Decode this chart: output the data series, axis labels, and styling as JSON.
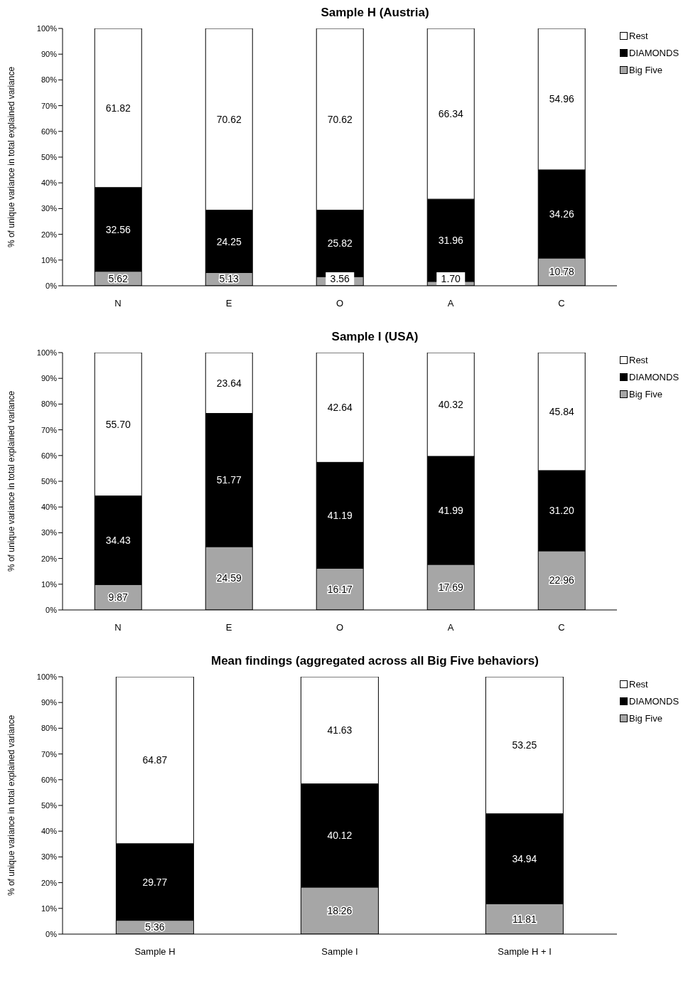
{
  "chart_data": [
    {
      "type": "bar",
      "title": "Sample H (Austria)",
      "ylabel": "% of unique variance in total explained variance",
      "categories": [
        "N",
        "E",
        "O",
        "A",
        "C"
      ],
      "stacked": true,
      "legend": "top right",
      "ylim": [
        0,
        100
      ],
      "yticks": [
        {
          "value": 0,
          "label": "0%"
        },
        {
          "value": 10,
          "label": "10%"
        },
        {
          "value": 20,
          "label": "20%"
        },
        {
          "value": 30,
          "label": "30%"
        },
        {
          "value": 40,
          "label": "40%"
        },
        {
          "value": 50,
          "label": "50%"
        },
        {
          "value": 60,
          "label": "60%"
        },
        {
          "value": 70,
          "label": "70%"
        },
        {
          "value": 80,
          "label": "80%"
        },
        {
          "value": 90,
          "label": "90%"
        },
        {
          "value": 100,
          "label": "100%"
        }
      ],
      "series": [
        {
          "name": "Big Five",
          "color": "#a6a6a6",
          "values": [
            5.62,
            5.13,
            3.56,
            1.7,
            10.78
          ],
          "value_labels": [
            "5.62",
            "5.13",
            "3.56",
            "1.70",
            "10.78"
          ]
        },
        {
          "name": "DIAMONDS",
          "color": "#000000",
          "values": [
            32.56,
            24.25,
            25.82,
            31.96,
            34.26
          ],
          "value_labels": [
            "32.56",
            "24.25",
            "25.82",
            "31.96",
            "34.26"
          ]
        },
        {
          "name": "Rest",
          "color": "#ffffff",
          "values": [
            61.82,
            70.62,
            70.62,
            66.34,
            54.96
          ],
          "value_labels": [
            "61.82",
            "70.62",
            "70.62",
            "66.34",
            "54.96"
          ]
        }
      ]
    },
    {
      "type": "bar",
      "title": "Sample I (USA)",
      "ylabel": "% of unique variance in total explained variance",
      "categories": [
        "N",
        "E",
        "O",
        "A",
        "C"
      ],
      "stacked": true,
      "legend": "top right",
      "ylim": [
        0,
        100
      ],
      "yticks": [
        {
          "value": 0,
          "label": "0%"
        },
        {
          "value": 10,
          "label": "10%"
        },
        {
          "value": 20,
          "label": "20%"
        },
        {
          "value": 30,
          "label": "30%"
        },
        {
          "value": 40,
          "label": "40%"
        },
        {
          "value": 50,
          "label": "50%"
        },
        {
          "value": 60,
          "label": "60%"
        },
        {
          "value": 70,
          "label": "70%"
        },
        {
          "value": 80,
          "label": "80%"
        },
        {
          "value": 90,
          "label": "90%"
        },
        {
          "value": 100,
          "label": "100%"
        }
      ],
      "series": [
        {
          "name": "Big Five",
          "color": "#a6a6a6",
          "values": [
            9.87,
            24.59,
            16.17,
            17.69,
            22.96
          ],
          "value_labels": [
            "9.87",
            "24.59",
            "16.17",
            "17.69",
            "22.96"
          ]
        },
        {
          "name": "DIAMONDS",
          "color": "#000000",
          "values": [
            34.43,
            51.77,
            41.19,
            41.99,
            31.2
          ],
          "value_labels": [
            "34.43",
            "51.77",
            "41.19",
            "41.99",
            "31.20"
          ]
        },
        {
          "name": "Rest",
          "color": "#ffffff",
          "values": [
            55.7,
            23.64,
            42.64,
            40.32,
            45.84
          ],
          "value_labels": [
            "55.70",
            "23.64",
            "42.64",
            "40.32",
            "45.84"
          ]
        }
      ]
    },
    {
      "type": "bar",
      "title": "Mean findings (aggregated across all Big Five behaviors)",
      "ylabel": "% of unique variance in total explained variance",
      "categories": [
        "Sample H",
        "Sample I",
        "Sample H + I"
      ],
      "stacked": true,
      "legend": "top right",
      "ylim": [
        0,
        100
      ],
      "yticks": [
        {
          "value": 0,
          "label": "0%"
        },
        {
          "value": 10,
          "label": "10%"
        },
        {
          "value": 20,
          "label": "20%"
        },
        {
          "value": 30,
          "label": "30%"
        },
        {
          "value": 40,
          "label": "40%"
        },
        {
          "value": 50,
          "label": "50%"
        },
        {
          "value": 60,
          "label": "60%"
        },
        {
          "value": 70,
          "label": "70%"
        },
        {
          "value": 80,
          "label": "80%"
        },
        {
          "value": 90,
          "label": "90%"
        },
        {
          "value": 100,
          "label": "100%"
        }
      ],
      "series": [
        {
          "name": "Big Five",
          "color": "#a6a6a6",
          "values": [
            5.36,
            18.26,
            11.81
          ],
          "value_labels": [
            "5.36",
            "18.26",
            "11.81"
          ]
        },
        {
          "name": "DIAMONDS",
          "color": "#000000",
          "values": [
            29.77,
            40.12,
            34.94
          ],
          "value_labels": [
            "29.77",
            "40.12",
            "34.94"
          ]
        },
        {
          "name": "Rest",
          "color": "#ffffff",
          "values": [
            64.87,
            41.63,
            53.25
          ],
          "value_labels": [
            "64.87",
            "41.63",
            "53.25"
          ]
        }
      ]
    }
  ]
}
